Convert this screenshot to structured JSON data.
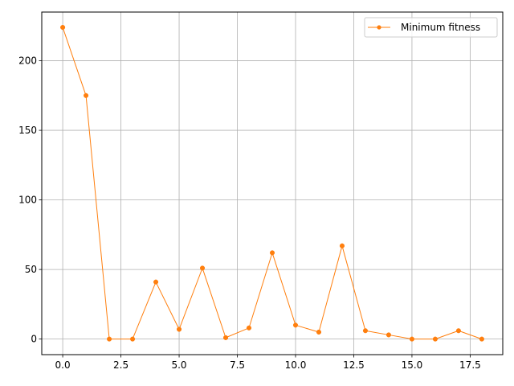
{
  "chart_data": {
    "type": "line",
    "title": "",
    "xlabel": "",
    "ylabel": "",
    "xlim": [
      -0.9,
      18.9
    ],
    "ylim": [
      -11.2,
      235.0
    ],
    "grid": true,
    "legend_position": "top-right",
    "x_ticks": [
      0.0,
      2.5,
      5.0,
      7.5,
      10.0,
      12.5,
      15.0,
      17.5
    ],
    "x_tick_labels": [
      "0.0",
      "2.5",
      "5.0",
      "7.5",
      "10.0",
      "12.5",
      "15.0",
      "17.5"
    ],
    "y_ticks": [
      0,
      50,
      100,
      150,
      200
    ],
    "y_tick_labels": [
      "0",
      "50",
      "100",
      "150",
      "200"
    ],
    "series": [
      {
        "name": "Minimum fitness",
        "color": "#ff7f0e",
        "marker": "circle",
        "x": [
          0,
          1,
          2,
          3,
          4,
          5,
          6,
          7,
          8,
          9,
          10,
          11,
          12,
          13,
          14,
          15,
          16,
          17,
          18
        ],
        "values": [
          224,
          175,
          0,
          0,
          41,
          7,
          51,
          1,
          8,
          62,
          10,
          5,
          67,
          6,
          3,
          0,
          0,
          6,
          0
        ]
      }
    ]
  }
}
